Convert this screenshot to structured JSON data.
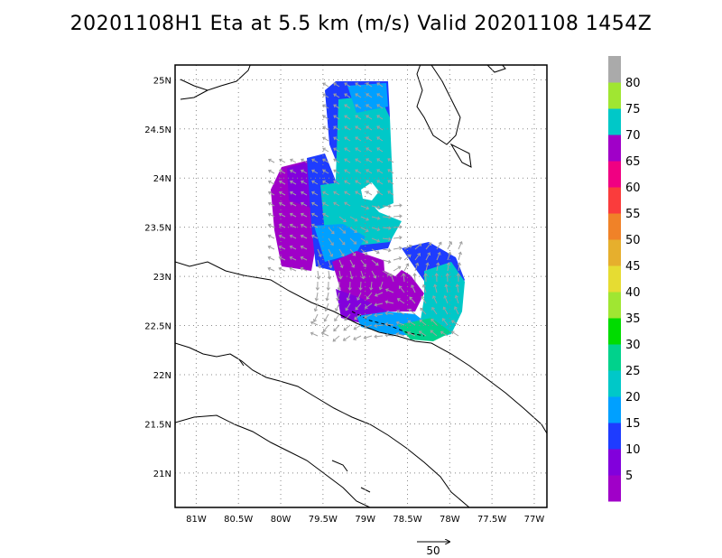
{
  "title": "20201108H1 Eta at 5.5 km (m/s) Valid 20201108 1454Z",
  "map": {
    "lon_ticks": [
      "81W",
      "80.5W",
      "80W",
      "79.5W",
      "79W",
      "78.5W",
      "78W",
      "77.5W",
      "77W"
    ],
    "lat_ticks": [
      "25N",
      "24.5N",
      "24N",
      "23.5N",
      "23N",
      "22.5N",
      "22N",
      "21.5N",
      "21N"
    ],
    "lon_values": [
      -81,
      -80.5,
      -80,
      -79.5,
      -79,
      -78.5,
      -78,
      -77.5,
      -77
    ],
    "lat_values": [
      25,
      24.5,
      24,
      23.5,
      23,
      22.5,
      22,
      21.5,
      21
    ],
    "lon_range": [
      -81.25,
      -76.85
    ],
    "lat_range": [
      20.65,
      25.15
    ],
    "grid": true,
    "vector_color": "#a0a0a0",
    "coast_color": "#000000"
  },
  "colorbar": {
    "labels": [
      "5",
      "10",
      "15",
      "20",
      "25",
      "30",
      "35",
      "40",
      "45",
      "50",
      "55",
      "60",
      "65",
      "70",
      "75",
      "80"
    ],
    "colors": [
      "#a000c8",
      "#8200dc",
      "#1e3cff",
      "#00a0ff",
      "#00c8c8",
      "#00d28c",
      "#00dc00",
      "#a0e632",
      "#e6dc32",
      "#e6af2d",
      "#f08228",
      "#fa3c3c",
      "#f00082",
      "#a000c8",
      "#00c8c8",
      "#a0e632",
      "#aaaaaa"
    ]
  },
  "reference_vector": {
    "label": "50"
  }
}
